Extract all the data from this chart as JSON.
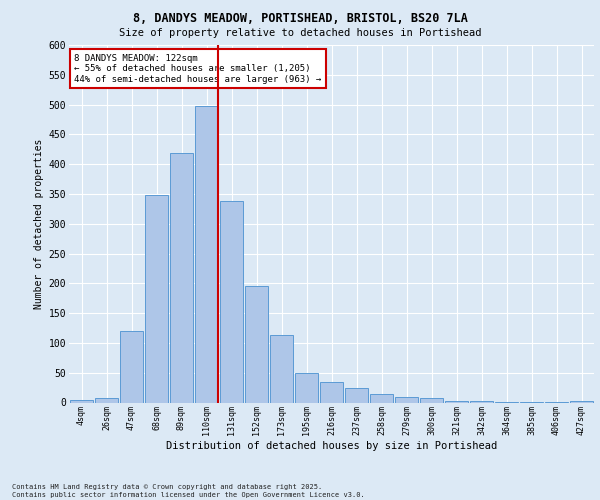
{
  "title_line1": "8, DANDYS MEADOW, PORTISHEAD, BRISTOL, BS20 7LA",
  "title_line2": "Size of property relative to detached houses in Portishead",
  "xlabel": "Distribution of detached houses by size in Portishead",
  "ylabel": "Number of detached properties",
  "categories": [
    "4sqm",
    "26sqm",
    "47sqm",
    "68sqm",
    "89sqm",
    "110sqm",
    "131sqm",
    "152sqm",
    "173sqm",
    "195sqm",
    "216sqm",
    "237sqm",
    "258sqm",
    "279sqm",
    "300sqm",
    "321sqm",
    "342sqm",
    "364sqm",
    "385sqm",
    "406sqm",
    "427sqm"
  ],
  "values": [
    4,
    8,
    120,
    348,
    418,
    497,
    338,
    195,
    113,
    50,
    35,
    24,
    15,
    10,
    8,
    3,
    2,
    1,
    1,
    1,
    2
  ],
  "bar_color": "#aec6e8",
  "bar_edge_color": "#5b9bd5",
  "background_color": "#dce9f5",
  "plot_bg_color": "#dce9f5",
  "grid_color": "#ffffff",
  "vline_color": "#cc0000",
  "annotation_text": "8 DANDYS MEADOW: 122sqm\n← 55% of detached houses are smaller (1,205)\n44% of semi-detached houses are larger (963) →",
  "annotation_box_color": "#ffffff",
  "annotation_box_edge_color": "#cc0000",
  "ylim": [
    0,
    600
  ],
  "yticks": [
    0,
    50,
    100,
    150,
    200,
    250,
    300,
    350,
    400,
    450,
    500,
    550,
    600
  ],
  "footnote": "Contains HM Land Registry data © Crown copyright and database right 2025.\nContains public sector information licensed under the Open Government Licence v3.0.",
  "figsize": [
    6.0,
    5.0
  ],
  "dpi": 100
}
